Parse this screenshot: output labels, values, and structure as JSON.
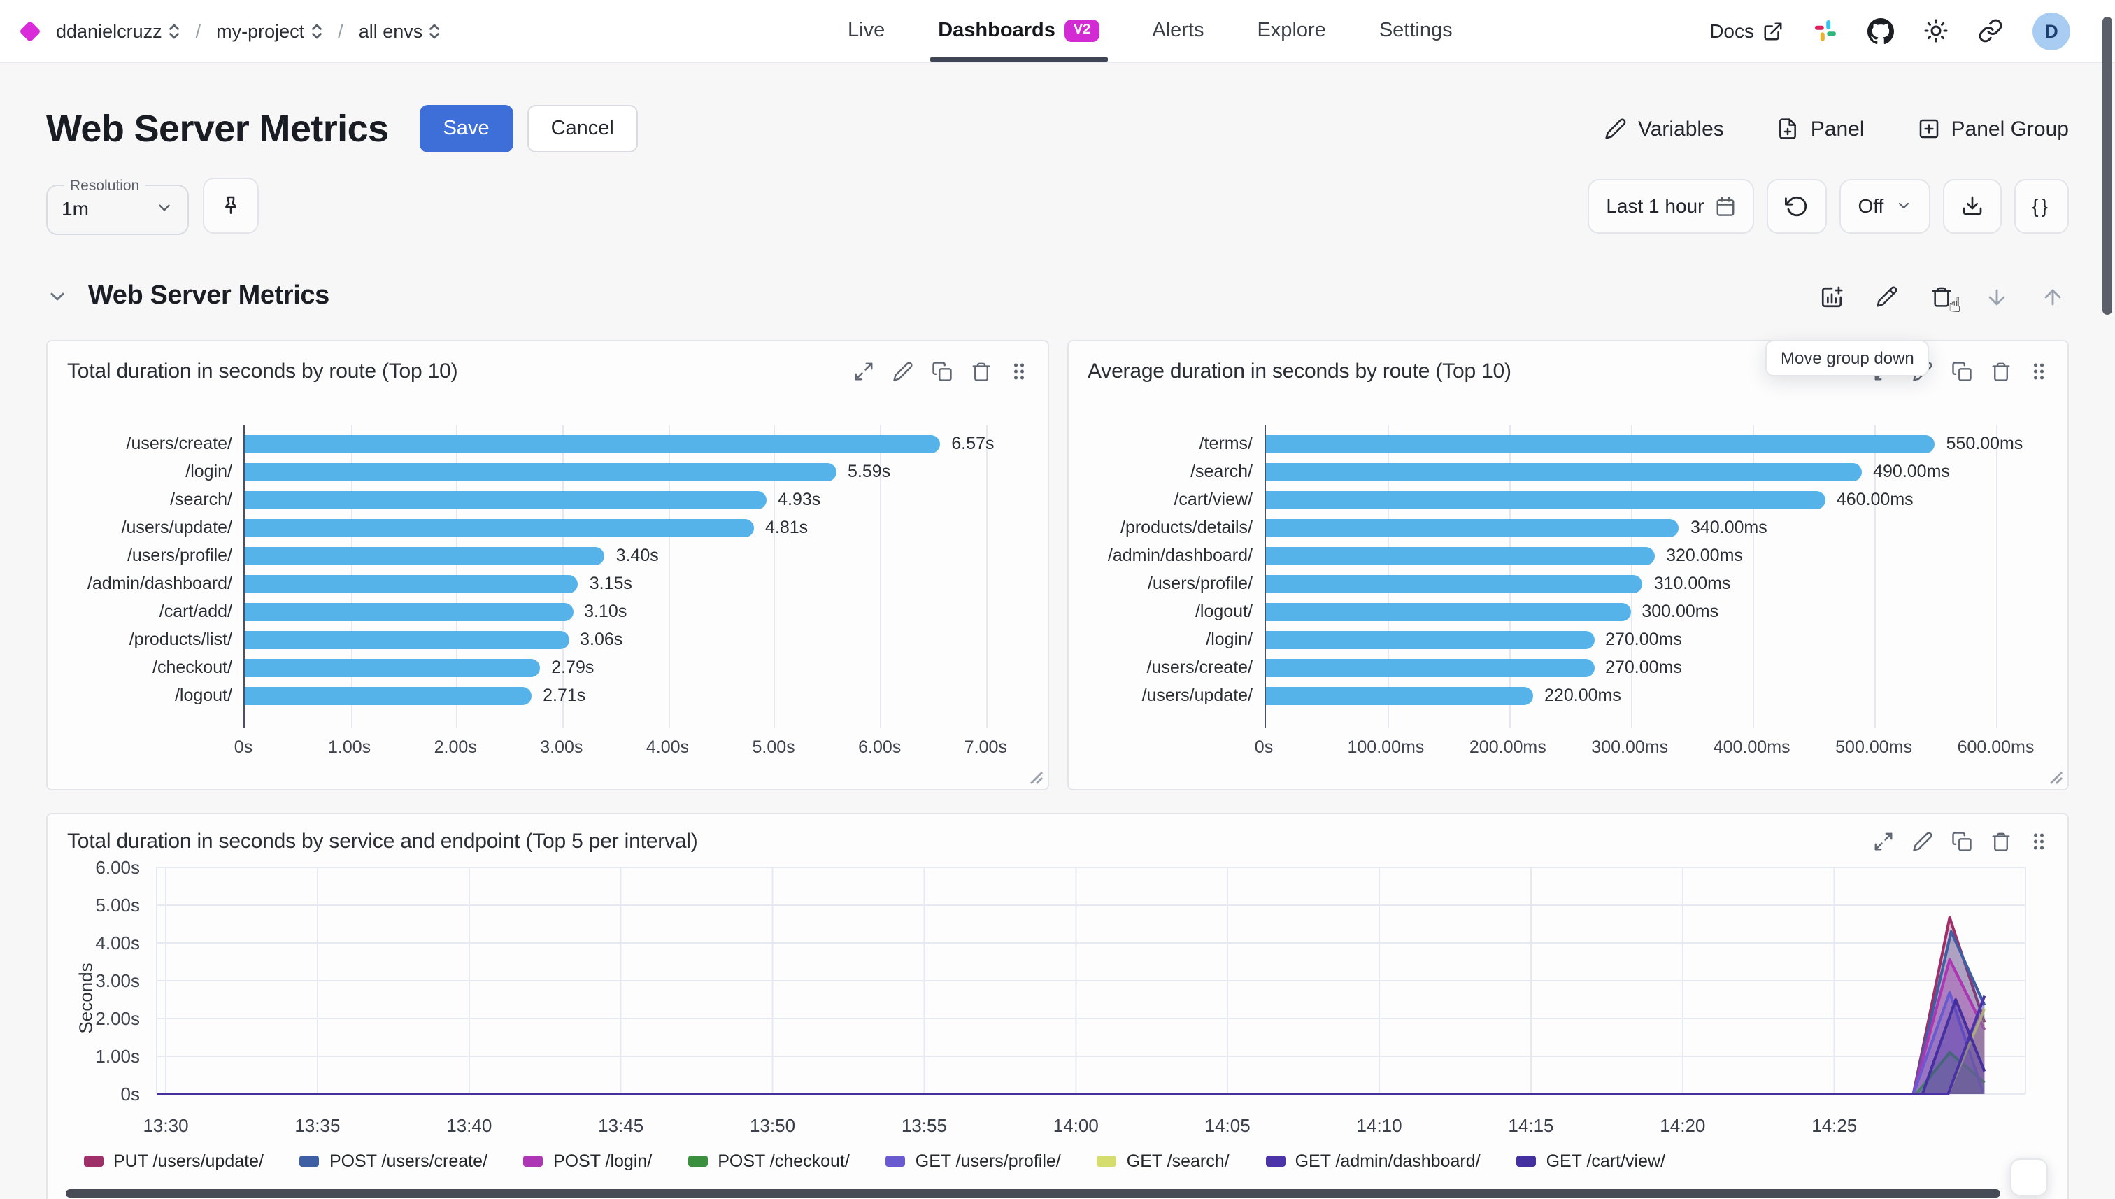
{
  "topbar": {
    "org": "ddanielcruzz",
    "separator": "/",
    "project": "my-project",
    "env": "all envs",
    "tabs": [
      {
        "label": "Live"
      },
      {
        "label": "Dashboards",
        "badge": "V2",
        "active": true
      },
      {
        "label": "Alerts"
      },
      {
        "label": "Explore"
      },
      {
        "label": "Settings"
      }
    ],
    "docs_label": "Docs",
    "avatar_initial": "D"
  },
  "header": {
    "title": "Web Server Metrics",
    "save_label": "Save",
    "cancel_label": "Cancel",
    "actions": {
      "variables": "Variables",
      "panel": "Panel",
      "panel_group": "Panel Group"
    }
  },
  "controls": {
    "resolution_label": "Resolution",
    "resolution_value": "1m",
    "time_range": "Last 1 hour",
    "auto_refresh": "Off",
    "braces": "{}"
  },
  "tooltip": "Move group down",
  "group": {
    "title": "Web Server Metrics"
  },
  "icons": {
    "cursor_hand": "☝"
  },
  "colors": {
    "accent_blue": "#3e6fd9",
    "brand_magenta": "#d32bd3",
    "bar_blue": "#56b3e9"
  },
  "chart_data": [
    {
      "type": "bar",
      "orientation": "horizontal",
      "title": "Total duration in seconds by route (Top 10)",
      "categories": [
        "/users/create/",
        "/login/",
        "/search/",
        "/users/update/",
        "/users/profile/",
        "/admin/dashboard/",
        "/cart/add/",
        "/products/list/",
        "/checkout/",
        "/logout/"
      ],
      "values": [
        6.57,
        5.59,
        4.93,
        4.81,
        3.4,
        3.15,
        3.1,
        3.06,
        2.79,
        2.71
      ],
      "value_labels": [
        "6.57s",
        "5.59s",
        "4.93s",
        "4.81s",
        "3.40s",
        "3.15s",
        "3.10s",
        "3.06s",
        "2.79s",
        "2.71s"
      ],
      "x_max": 7.42,
      "x_ticks": [
        {
          "v": 0,
          "label": "0s"
        },
        {
          "v": 1,
          "label": "1.00s"
        },
        {
          "v": 2,
          "label": "2.00s"
        },
        {
          "v": 3,
          "label": "3.00s"
        },
        {
          "v": 4,
          "label": "4.00s"
        },
        {
          "v": 5,
          "label": "5.00s"
        },
        {
          "v": 6,
          "label": "6.00s"
        },
        {
          "v": 7,
          "label": "7.00s"
        }
      ],
      "bar_color": "#56b3e9",
      "unit": "s"
    },
    {
      "type": "bar",
      "orientation": "horizontal",
      "title": "Average duration in seconds by route (Top 10)",
      "categories": [
        "/terms/",
        "/search/",
        "/cart/view/",
        "/products/details/",
        "/admin/dashboard/",
        "/users/profile/",
        "/logout/",
        "/login/",
        "/users/create/",
        "/users/update/"
      ],
      "values": [
        550,
        490,
        460,
        340,
        320,
        310,
        300,
        270,
        270,
        220
      ],
      "value_labels": [
        "550.00ms",
        "490.00ms",
        "460.00ms",
        "340.00ms",
        "320.00ms",
        "310.00ms",
        "300.00ms",
        "270.00ms",
        "270.00ms",
        "220.00ms"
      ],
      "x_max": 645,
      "x_ticks": [
        {
          "v": 0,
          "label": "0s"
        },
        {
          "v": 100,
          "label": "100.00ms"
        },
        {
          "v": 200,
          "label": "200.00ms"
        },
        {
          "v": 300,
          "label": "300.00ms"
        },
        {
          "v": 400,
          "label": "400.00ms"
        },
        {
          "v": 500,
          "label": "500.00ms"
        },
        {
          "v": 600,
          "label": "600.00ms"
        }
      ],
      "bar_color": "#56b3e9",
      "unit": "ms"
    },
    {
      "type": "area",
      "title": "Total duration in seconds by service and endpoint (Top 5 per interval)",
      "ylabel": "Seconds",
      "y_max": 6,
      "y_ticks": [
        {
          "v": 0,
          "label": "0s"
        },
        {
          "v": 1,
          "label": "1.00s"
        },
        {
          "v": 2,
          "label": "2.00s"
        },
        {
          "v": 3,
          "label": "3.00s"
        },
        {
          "v": 4,
          "label": "4.00s"
        },
        {
          "v": 5,
          "label": "5.00s"
        },
        {
          "v": 6,
          "label": "6.00s"
        }
      ],
      "x_start_minutes": -0.3,
      "x_end_minutes": 61.3,
      "data_end_minutes": 59.95,
      "x_ticks": [
        {
          "m": 0,
          "label": "13:30"
        },
        {
          "m": 5,
          "label": "13:35"
        },
        {
          "m": 10,
          "label": "13:40"
        },
        {
          "m": 15,
          "label": "13:45"
        },
        {
          "m": 20,
          "label": "13:50"
        },
        {
          "m": 25,
          "label": "13:55"
        },
        {
          "m": 30,
          "label": "14:00"
        },
        {
          "m": 35,
          "label": "14:05"
        },
        {
          "m": 40,
          "label": "14:10"
        },
        {
          "m": 45,
          "label": "14:15"
        },
        {
          "m": 50,
          "label": "14:20"
        },
        {
          "m": 55,
          "label": "14:25"
        }
      ],
      "series": [
        {
          "name": "PUT /users/update/",
          "color": "#9e2f68",
          "points": [
            [
              -0.3,
              0
            ],
            [
              57.6,
              0
            ],
            [
              58.8,
              4.67
            ],
            [
              59.95,
              1.9
            ]
          ]
        },
        {
          "name": "POST /users/create/",
          "color": "#3e5fa3",
          "points": [
            [
              -0.3,
              0
            ],
            [
              57.6,
              0
            ],
            [
              58.85,
              4.3
            ],
            [
              59.95,
              2.35
            ]
          ]
        },
        {
          "name": "POST /login/",
          "color": "#ad36b4",
          "points": [
            [
              -0.3,
              0
            ],
            [
              57.6,
              0
            ],
            [
              58.8,
              3.56
            ],
            [
              59.95,
              1.7
            ]
          ]
        },
        {
          "name": "POST /checkout/",
          "color": "#3a8f3f",
          "points": [
            [
              -0.3,
              0
            ],
            [
              57.7,
              0
            ],
            [
              58.8,
              1.1
            ],
            [
              59.95,
              0.3
            ]
          ]
        },
        {
          "name": "GET /users/profile/",
          "color": "#6a5ad0",
          "points": [
            [
              -0.3,
              0
            ],
            [
              57.6,
              0
            ],
            [
              58.8,
              2.69
            ],
            [
              59.9,
              0.05
            ]
          ]
        },
        {
          "name": "GET /search/",
          "color": "#d4dd6d",
          "points": [
            [
              -0.3,
              0
            ],
            [
              58.75,
              0
            ],
            [
              59.95,
              2.26
            ]
          ]
        },
        {
          "name": "GET /admin/dashboard/",
          "color": "#4c33a8",
          "points": [
            [
              -0.3,
              0
            ],
            [
              58.75,
              0
            ],
            [
              59.95,
              2.6
            ]
          ]
        },
        {
          "name": "GET /cart/view/",
          "color": "#45309f",
          "points": [
            [
              -0.3,
              0
            ],
            [
              57.9,
              0
            ],
            [
              59.0,
              2.5
            ],
            [
              59.95,
              0.6
            ]
          ]
        }
      ],
      "legend_position": "bottom",
      "grid": true
    }
  ]
}
